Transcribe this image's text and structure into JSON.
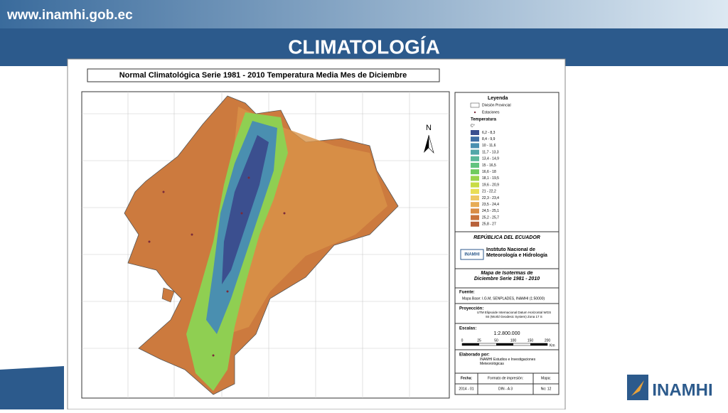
{
  "header": {
    "site": "www.inamhi.gob.ec",
    "title": "CLIMATOLOGÍA"
  },
  "map": {
    "title": "Normal Climatológica Serie 1981 - 2010 Temperatura Media Mes de Diciembre",
    "north": "N",
    "legend": {
      "title": "Leyenda",
      "division": "División Provincial",
      "stations": "Estaciones",
      "temperature": "Temperatura",
      "unit": "C°",
      "items": [
        {
          "label": "6,2 - 8,3",
          "color": "#3b4f8f"
        },
        {
          "label": "8,4 - 9,9",
          "color": "#3f6ea4"
        },
        {
          "label": "10 - 11,6",
          "color": "#4a8fb0"
        },
        {
          "label": "11,7 - 13,3",
          "color": "#52a7a8"
        },
        {
          "label": "13,4 - 14,9",
          "color": "#5bb99a"
        },
        {
          "label": "15 - 16,5",
          "color": "#62c47f"
        },
        {
          "label": "16,6 - 18",
          "color": "#6fcb5e"
        },
        {
          "label": "18,1 - 19,5",
          "color": "#9bd44b"
        },
        {
          "label": "19,6 - 20,9",
          "color": "#c8dc45"
        },
        {
          "label": "21 - 22,2",
          "color": "#e9de55"
        },
        {
          "label": "22,3 - 23,4",
          "color": "#eec864"
        },
        {
          "label": "23,5 - 24,4",
          "color": "#e7ac55"
        },
        {
          "label": "24,5 - 25,1",
          "color": "#d98d45"
        },
        {
          "label": "25,2 - 25,7",
          "color": "#c9743c"
        },
        {
          "label": "25,8 - 27",
          "color": "#b8613a"
        }
      ]
    },
    "republic": "REPÚBLICA DEL ECUADOR",
    "institute": "Instituto Nacional de Meteorología e Hidrología",
    "logo": "INAMHI",
    "map_name": "Mapa de Isotermas de Diciembre Serie 1981 - 2010",
    "source_label": "Fuente:",
    "source": "Mapa Base: I.G.M, SENPLADES, INAMHI (1:50000)",
    "projection_label": "Proyección:",
    "projection": "UTM Elipsoide Internacional Datum Horizontal WGS 84 (World Geodesic System) Zona 17 S",
    "scale_label": "Escalas:",
    "scale": "1:2.800.000",
    "scale_ticks": [
      "0",
      "25",
      "50",
      "100",
      "150",
      "200"
    ],
    "scale_unit": "Km",
    "made_label": "Elaborado por:",
    "made_by": "INAMHI Estudios e Investigaciones Meteorológicas",
    "date_label": "Fecha:",
    "format_label": "Formato de impresión:",
    "map_label": "Mapa:",
    "date": "2014 - 01",
    "format": "DIN - A 3",
    "map_no": "No: 12"
  },
  "footer": {
    "logo": "INAMHI"
  }
}
